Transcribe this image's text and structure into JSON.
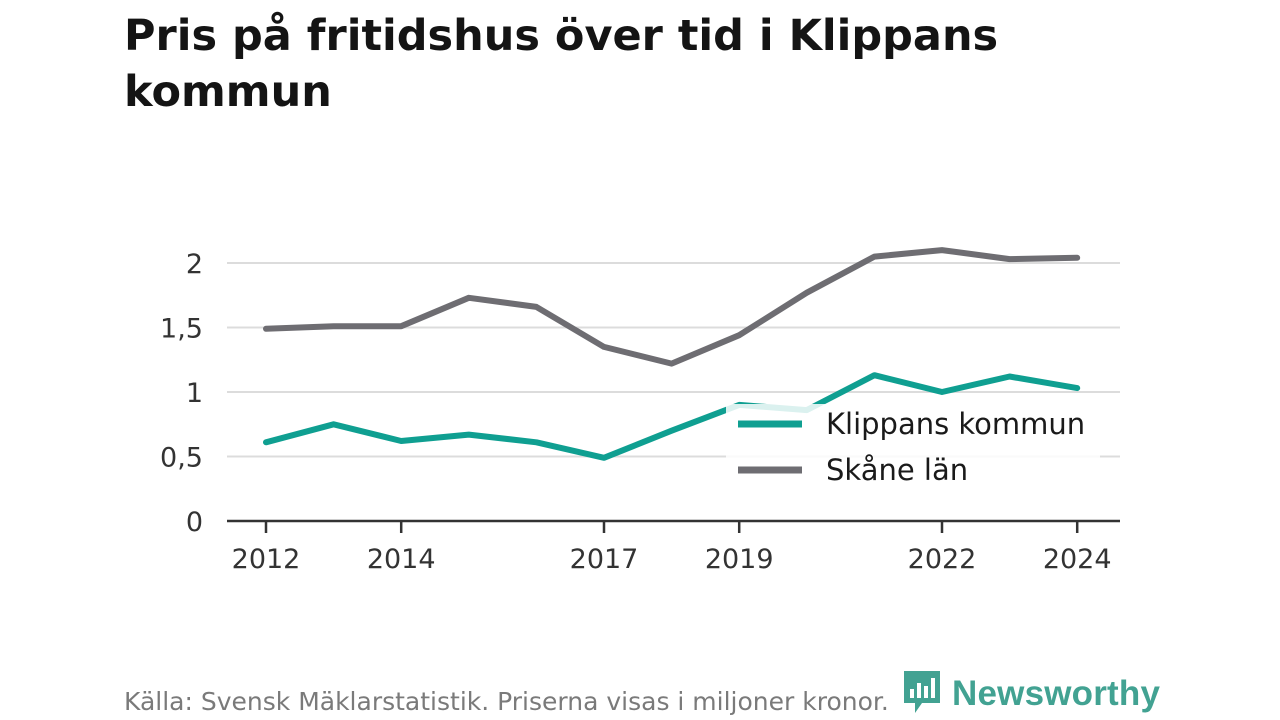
{
  "title": "Pris på fritidshus över tid i Klippans kommun",
  "source": "Källa: Svensk Mäklarstatistik. Priserna visas i miljoner kronor.",
  "brand": {
    "name": "Newsworthy",
    "icon": "newsworthy-logo-icon",
    "color": "#42a292"
  },
  "chart_data": {
    "type": "line",
    "x": [
      2012,
      2013,
      2014,
      2015,
      2016,
      2017,
      2018,
      2019,
      2020,
      2021,
      2022,
      2023,
      2024
    ],
    "x_tick_labels": [
      "2012",
      "2014",
      "2017",
      "2019",
      "2022",
      "2024"
    ],
    "y_tick_labels": [
      "0",
      "0,5",
      "1",
      "1,5",
      "2"
    ],
    "y_ticks": [
      0,
      0.5,
      1,
      1.5,
      2
    ],
    "ylim": [
      0,
      2.2
    ],
    "grid": "horizontal",
    "legend_position": "lower-right",
    "series": [
      {
        "name": "Klippans kommun",
        "color": "#0f9f91",
        "values": [
          0.61,
          0.75,
          0.62,
          0.67,
          0.61,
          0.49,
          0.7,
          0.9,
          0.86,
          1.13,
          1.0,
          1.12,
          1.03
        ]
      },
      {
        "name": "Skåne län",
        "color": "#6e6d72",
        "values": [
          1.49,
          1.51,
          1.51,
          1.73,
          1.66,
          1.35,
          1.22,
          1.44,
          1.77,
          2.05,
          2.1,
          2.03,
          2.04
        ]
      }
    ]
  }
}
